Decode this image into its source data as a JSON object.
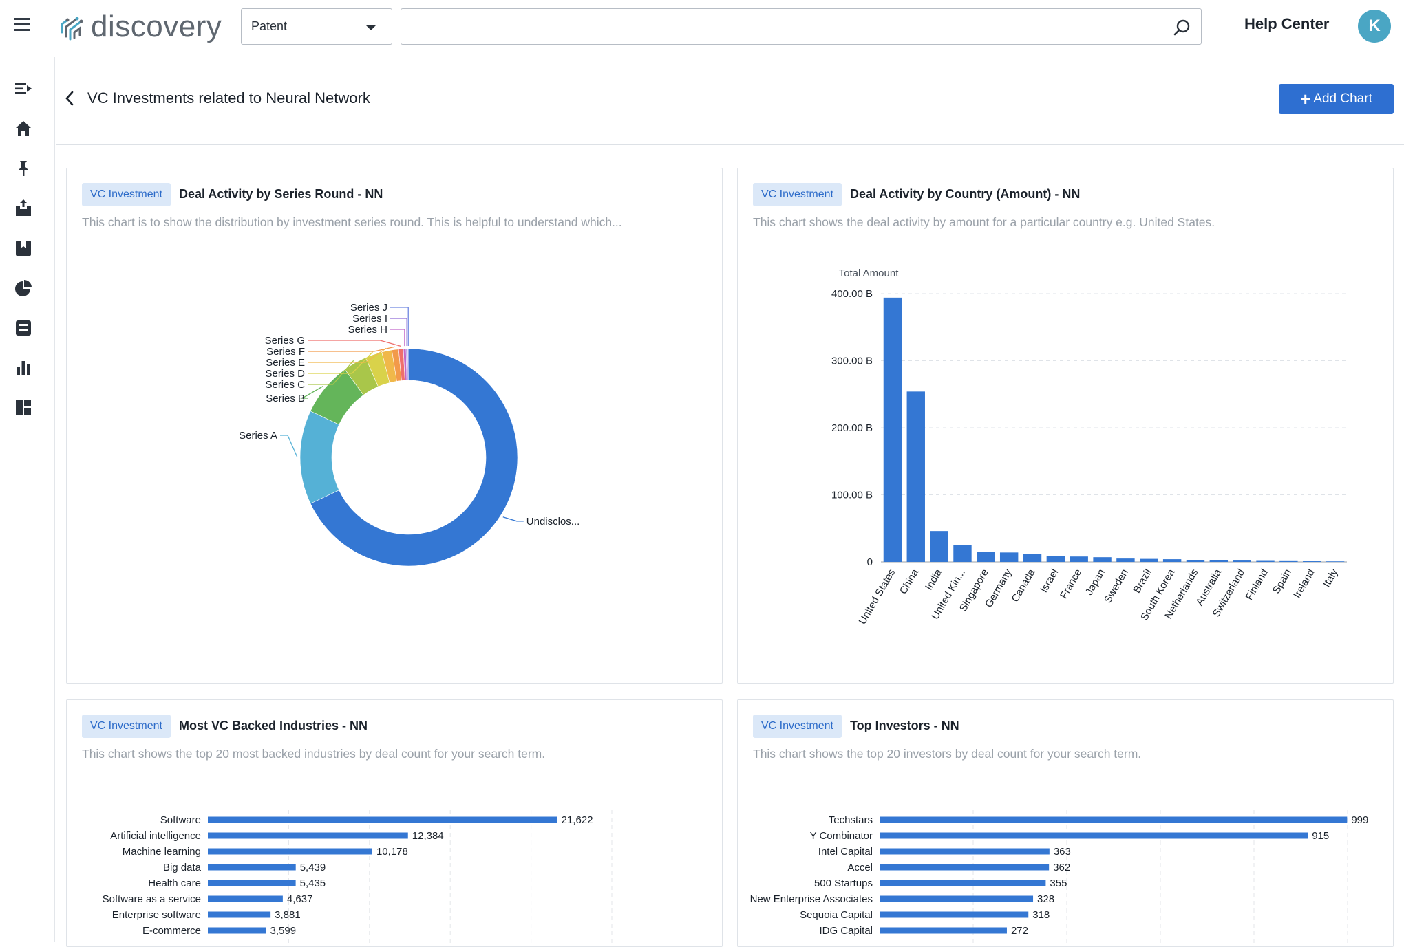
{
  "topbar": {
    "logo_text": "discovery",
    "type_select": "Patent",
    "search_value": "",
    "help_label": "Help Center",
    "avatar_initial": "K"
  },
  "sidenav": [
    "collapse-icon",
    "home-icon",
    "pin-icon",
    "inbox-icon",
    "bookmark-icon",
    "pie-chart-icon",
    "save-icon",
    "bar-chart-icon",
    "dashboard-icon"
  ],
  "page": {
    "title": "VC Investments related to Neural Network",
    "add_chart_label": "Add Chart"
  },
  "colors": {
    "accent": "#2e6fd1",
    "badge_bg": "#dbe8f8",
    "bar": "#3477d3"
  },
  "cards": [
    {
      "badge": "VC Investment",
      "title": "Deal Activity by Series Round - NN",
      "description": "This chart is to show the distribution by investment series round. This is helpful to understand which..."
    },
    {
      "badge": "VC Investment",
      "title": "Deal Activity by Country (Amount) - NN",
      "description": "This chart shows the deal activity by amount for a particular country e.g. United States."
    },
    {
      "badge": "VC Investment",
      "title": "Most VC Backed Industries - NN",
      "description": "This chart shows the top 20 most backed industries by deal count for your search term."
    },
    {
      "badge": "VC Investment",
      "title": "Top Investors - NN",
      "description": "This chart shows the top 20 investors by deal count for your search term."
    }
  ],
  "chart_data": [
    {
      "type": "pie",
      "donut": true,
      "slices": [
        {
          "label": "Undisclos...",
          "value": 68.0,
          "color": "#3477d3"
        },
        {
          "label": "Series A",
          "value": 14.0,
          "color": "#55b1d6"
        },
        {
          "label": "Series B",
          "value": 8.0,
          "color": "#64b55a"
        },
        {
          "label": "Series C",
          "value": 3.5,
          "color": "#a9c64a"
        },
        {
          "label": "Series D",
          "value": 2.5,
          "color": "#d9d24a"
        },
        {
          "label": "Series E",
          "value": 1.5,
          "color": "#f0b84a"
        },
        {
          "label": "Series F",
          "value": 1.0,
          "color": "#f29a4a"
        },
        {
          "label": "Series G",
          "value": 0.7,
          "color": "#ef6f6c"
        },
        {
          "label": "Series H",
          "value": 0.4,
          "color": "#c268c9"
        },
        {
          "label": "Series I",
          "value": 0.25,
          "color": "#8f6ad6"
        },
        {
          "label": "Series J",
          "value": 0.15,
          "color": "#6f86e0"
        }
      ]
    },
    {
      "type": "bar",
      "ylabel": "Total Amount",
      "ylim": [
        0,
        400
      ],
      "yticks": [
        "0",
        "100.00 B",
        "200.00 B",
        "300.00 B",
        "400.00 B"
      ],
      "ytick_values": [
        0,
        100,
        200,
        300,
        400
      ],
      "categories": [
        "United States",
        "China",
        "India",
        "United Kin...",
        "Singapore",
        "Germany",
        "Canada",
        "Israel",
        "France",
        "Japan",
        "Sweden",
        "Brazil",
        "South Korea",
        "Netherlands",
        "Australia",
        "Switzerland",
        "Finland",
        "Spain",
        "Ireland",
        "Italy"
      ],
      "values": [
        394,
        254,
        46,
        25,
        15,
        14,
        12,
        9,
        8,
        7,
        5,
        4.5,
        4,
        3,
        2.5,
        2,
        1.5,
        1.2,
        1,
        0.8
      ]
    },
    {
      "type": "bar",
      "orientation": "horizontal",
      "categories": [
        "Software",
        "Artificial intelligence",
        "Machine learning",
        "Big data",
        "Health care",
        "Software as a service",
        "Enterprise software",
        "E-commerce"
      ],
      "values": [
        21622,
        12384,
        10178,
        5439,
        5435,
        4637,
        3881,
        3599
      ],
      "labels": [
        "21,622",
        "12,384",
        "10,178",
        "5,439",
        "5,435",
        "4,637",
        "3,881",
        "3,599"
      ],
      "xlim": [
        0,
        25000
      ]
    },
    {
      "type": "bar",
      "orientation": "horizontal",
      "categories": [
        "Techstars",
        "Y Combinator",
        "Intel Capital",
        "Accel",
        "500 Startups",
        "New Enterprise Associates",
        "Sequoia Capital",
        "IDG Capital"
      ],
      "values": [
        999,
        915,
        363,
        362,
        355,
        328,
        318,
        272
      ],
      "labels": [
        "999",
        "915",
        "363",
        "362",
        "355",
        "328",
        "318",
        "272"
      ],
      "xlim": [
        0,
        1000
      ]
    }
  ]
}
